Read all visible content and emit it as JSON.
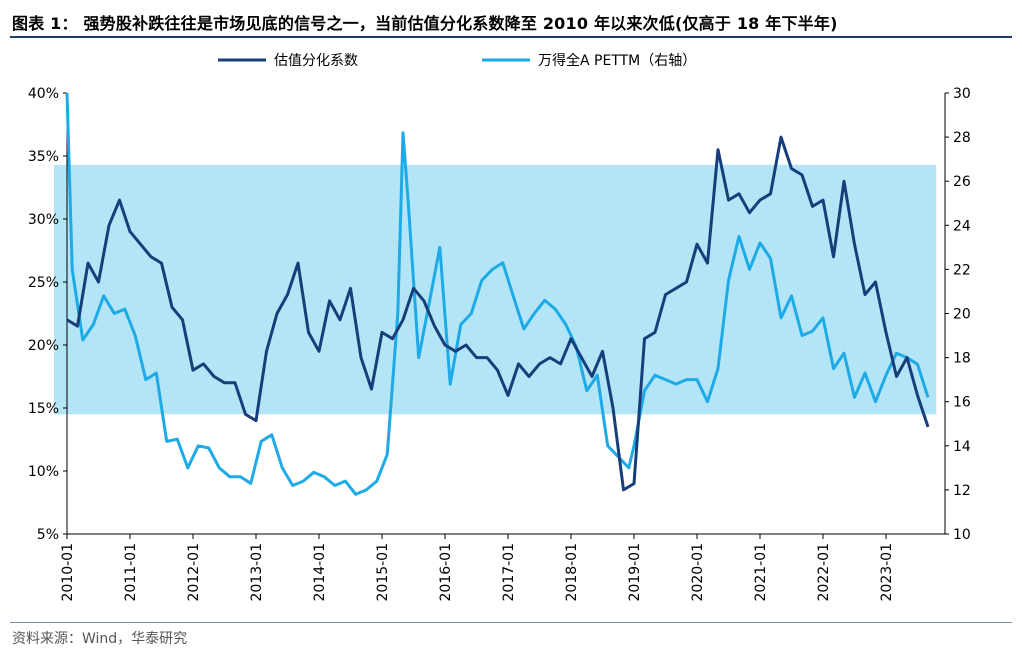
{
  "title": "图表 1：   强势股补跌往往是市场见底的信号之一，当前估值分化系数降至 2010 年以来次低(仅高于 18 年下半年)",
  "source": "资料来源：Wind，华泰研究",
  "colors": {
    "dispersion": "#173e7a",
    "pettm": "#1eaae6",
    "band": "#b3e5f6"
  },
  "chart_data": {
    "type": "line",
    "x_ticks": [
      "2010-01",
      "2011-01",
      "2012-01",
      "2013-01",
      "2014-01",
      "2015-01",
      "2016-01",
      "2017-01",
      "2018-01",
      "2019-01",
      "2020-01",
      "2021-01",
      "2022-01",
      "2023-01"
    ],
    "y_left": {
      "ylim": [
        5,
        40
      ],
      "ticks": [
        "5%",
        "10%",
        "15%",
        "20%",
        "25%",
        "30%",
        "35%",
        "40%"
      ]
    },
    "y_right": {
      "ylim": [
        10,
        30
      ],
      "ticks": [
        "10",
        "12",
        "14",
        "16",
        "18",
        "20",
        "22",
        "24",
        "26",
        "28",
        "30"
      ]
    },
    "band": {
      "y_left_range": [
        14.5,
        34.3
      ],
      "x_range": [
        "2010-01",
        "2023-10"
      ]
    },
    "series": [
      {
        "name": "估值分化系数",
        "axis": "left",
        "x": [
          "2010-01",
          "2010-03",
          "2010-05",
          "2010-07",
          "2010-09",
          "2010-11",
          "2011-01",
          "2011-03",
          "2011-05",
          "2011-07",
          "2011-09",
          "2011-11",
          "2012-01",
          "2012-03",
          "2012-05",
          "2012-07",
          "2012-09",
          "2012-11",
          "2013-01",
          "2013-03",
          "2013-05",
          "2013-07",
          "2013-09",
          "2013-11",
          "2014-01",
          "2014-03",
          "2014-05",
          "2014-07",
          "2014-09",
          "2014-11",
          "2015-01",
          "2015-03",
          "2015-05",
          "2015-07",
          "2015-09",
          "2015-11",
          "2016-01",
          "2016-03",
          "2016-05",
          "2016-07",
          "2016-09",
          "2016-11",
          "2017-01",
          "2017-03",
          "2017-05",
          "2017-07",
          "2017-09",
          "2017-11",
          "2018-01",
          "2018-03",
          "2018-05",
          "2018-07",
          "2018-09",
          "2018-11",
          "2019-01",
          "2019-03",
          "2019-05",
          "2019-07",
          "2019-09",
          "2019-11",
          "2020-01",
          "2020-03",
          "2020-05",
          "2020-07",
          "2020-09",
          "2020-11",
          "2021-01",
          "2021-03",
          "2021-05",
          "2021-07",
          "2021-09",
          "2021-11",
          "2022-01",
          "2022-03",
          "2022-05",
          "2022-07",
          "2022-09",
          "2022-11",
          "2023-01",
          "2023-03",
          "2023-05",
          "2023-07",
          "2023-09"
        ],
        "values": [
          22,
          21.5,
          26.5,
          25,
          29.5,
          31.5,
          29,
          28,
          27,
          26.5,
          23,
          22,
          18,
          18.5,
          17.5,
          17,
          17,
          14.5,
          14,
          19.5,
          22.5,
          24,
          26.5,
          21,
          19.5,
          23.5,
          22,
          24.5,
          19,
          16.5,
          21,
          20.5,
          22,
          24.5,
          23.5,
          21.5,
          20,
          19.5,
          20,
          19,
          19,
          18,
          16,
          18.5,
          17.5,
          18.5,
          19,
          18.5,
          20.5,
          19,
          17.5,
          19.5,
          15,
          8.5,
          9,
          20.5,
          21,
          24,
          24.5,
          25,
          28,
          26.5,
          35.5,
          31.5,
          32,
          30.5,
          31.5,
          32,
          36.5,
          34,
          33.5,
          31,
          31.5,
          27,
          33,
          28,
          24,
          25,
          21,
          17.5,
          19,
          16,
          13.5
        ]
      },
      {
        "name": "万得全A PETTM（右轴）",
        "axis": "right",
        "x": [
          "2010-01",
          "2010-02",
          "2010-04",
          "2010-06",
          "2010-08",
          "2010-10",
          "2010-12",
          "2011-02",
          "2011-04",
          "2011-06",
          "2011-08",
          "2011-10",
          "2011-12",
          "2012-02",
          "2012-04",
          "2012-06",
          "2012-08",
          "2012-10",
          "2012-12",
          "2013-02",
          "2013-04",
          "2013-06",
          "2013-08",
          "2013-10",
          "2013-12",
          "2014-02",
          "2014-04",
          "2014-06",
          "2014-08",
          "2014-10",
          "2014-12",
          "2015-02",
          "2015-04",
          "2015-05",
          "2015-06",
          "2015-08",
          "2015-10",
          "2015-12",
          "2016-02",
          "2016-04",
          "2016-06",
          "2016-08",
          "2016-10",
          "2016-12",
          "2017-02",
          "2017-04",
          "2017-06",
          "2017-08",
          "2017-10",
          "2017-12",
          "2018-02",
          "2018-04",
          "2018-06",
          "2018-08",
          "2018-10",
          "2018-12",
          "2019-01",
          "2019-03",
          "2019-05",
          "2019-07",
          "2019-09",
          "2019-11",
          "2020-01",
          "2020-03",
          "2020-05",
          "2020-07",
          "2020-09",
          "2020-11",
          "2021-01",
          "2021-03",
          "2021-05",
          "2021-07",
          "2021-09",
          "2021-11",
          "2022-01",
          "2022-03",
          "2022-05",
          "2022-07",
          "2022-09",
          "2022-11",
          "2023-01",
          "2023-03",
          "2023-05",
          "2023-07",
          "2023-09"
        ],
        "values": [
          30,
          22,
          18.8,
          19.5,
          20.8,
          20,
          20.2,
          19,
          17,
          17.3,
          14.2,
          14.3,
          13,
          14,
          13.9,
          13,
          12.6,
          12.6,
          12.3,
          14.2,
          14.5,
          13,
          12.2,
          12.4,
          12.8,
          12.6,
          12.2,
          12.4,
          11.8,
          12,
          12.4,
          13.6,
          20,
          28.2,
          25,
          18,
          20.5,
          23,
          16.8,
          19.5,
          20,
          21.5,
          22,
          22.3,
          20.8,
          19.3,
          20,
          20.6,
          20.2,
          19.5,
          18.5,
          16.5,
          17.2,
          14,
          13.5,
          13,
          14,
          16.5,
          17.2,
          17,
          16.8,
          17,
          17,
          16,
          17.5,
          21.5,
          23.5,
          22,
          23.2,
          22.5,
          19.8,
          20.8,
          19,
          19.2,
          19.8,
          17.5,
          18.2,
          16.2,
          17.3,
          16,
          17.2,
          18.2,
          18,
          17.7,
          16.2
        ]
      }
    ]
  }
}
